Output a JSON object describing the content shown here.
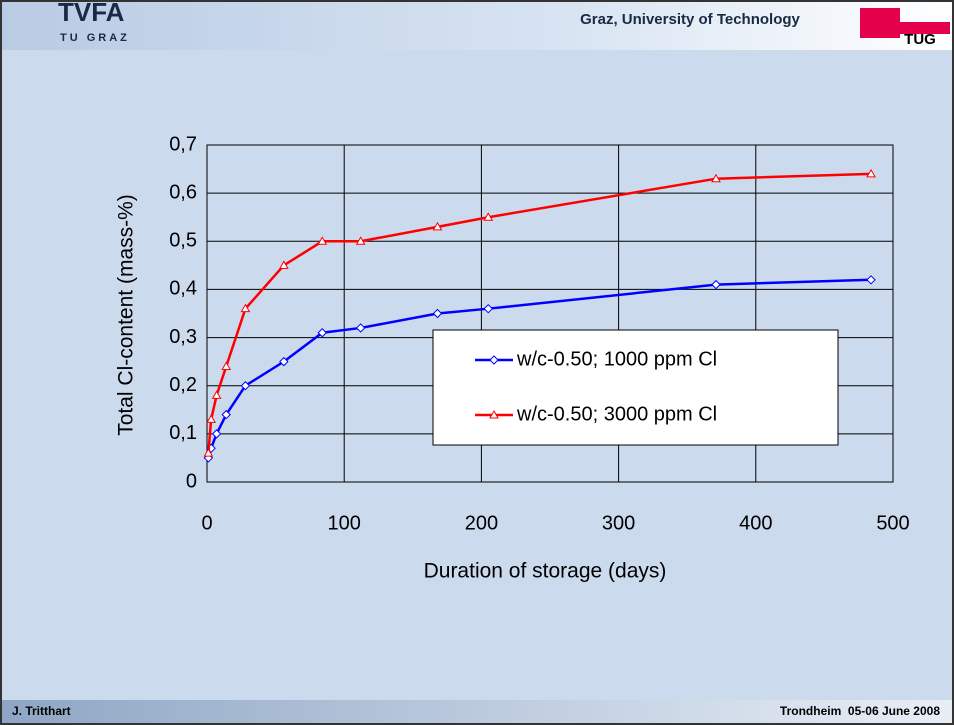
{
  "header": {
    "logo": "TVFA",
    "logo_sub": "TU GRAZ",
    "university": "Graz, University of Technology",
    "badge": "TUG"
  },
  "footer": {
    "author": "J. Tritthart",
    "event": "Trondheim  05-06 June 2008"
  },
  "chart_data": {
    "type": "line",
    "xlabel": "Duration of storage (days)",
    "ylabel": "Total Cl-content (mass-%)",
    "xlim": [
      0,
      500
    ],
    "xticks": [
      0,
      100,
      200,
      300,
      400,
      500
    ],
    "ylim": [
      0,
      0.7
    ],
    "yticks": [
      0,
      {
        "value": 0.1,
        "label": "0,1"
      },
      {
        "value": 0.2,
        "label": "0,2"
      },
      {
        "value": 0.3,
        "label": "0,3"
      },
      {
        "value": 0.4,
        "label": "0,4"
      },
      {
        "value": 0.5,
        "label": "0,5"
      },
      {
        "value": 0.6,
        "label": "0,6"
      },
      {
        "value": 0.7,
        "label": "0,7"
      }
    ],
    "grid": true,
    "legend": "center-right",
    "series": [
      {
        "name": "w/c-0.50; 1000 ppm Cl",
        "color": "#0000ff",
        "marker": "diamond",
        "x": [
          1,
          3,
          7,
          14,
          28,
          56,
          84,
          112,
          168,
          205,
          371,
          484
        ],
        "values": [
          0.05,
          0.07,
          0.1,
          0.14,
          0.2,
          0.25,
          0.31,
          0.32,
          0.35,
          0.36,
          0.41,
          0.42
        ]
      },
      {
        "name": "w/c-0.50; 3000 ppm Cl",
        "color": "#ff0000",
        "marker": "triangle",
        "x": [
          1,
          3,
          7,
          14,
          28,
          56,
          84,
          112,
          168,
          205,
          371,
          484
        ],
        "values": [
          0.06,
          0.13,
          0.18,
          0.24,
          0.36,
          0.45,
          0.5,
          0.5,
          0.53,
          0.55,
          0.63,
          0.64
        ]
      }
    ]
  }
}
